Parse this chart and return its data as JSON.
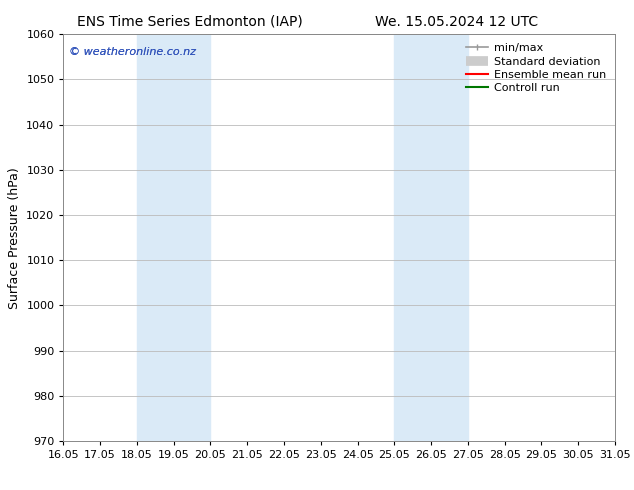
{
  "title_left": "ENS Time Series Edmonton (IAP)",
  "title_right": "We. 15.05.2024 12 UTC",
  "ylabel": "Surface Pressure (hPa)",
  "xlabel": "",
  "ylim": [
    970,
    1060
  ],
  "yticks": [
    970,
    980,
    990,
    1000,
    1010,
    1020,
    1030,
    1040,
    1050,
    1060
  ],
  "xtick_labels": [
    "16.05",
    "17.05",
    "18.05",
    "19.05",
    "20.05",
    "21.05",
    "22.05",
    "23.05",
    "24.05",
    "25.05",
    "26.05",
    "27.05",
    "28.05",
    "29.05",
    "30.05",
    "31.05"
  ],
  "xtick_positions": [
    0,
    1,
    2,
    3,
    4,
    5,
    6,
    7,
    8,
    9,
    10,
    11,
    12,
    13,
    14,
    15
  ],
  "shade_regions": [
    {
      "x_start": 2,
      "x_end": 4,
      "color": "#daeaf7"
    },
    {
      "x_start": 9,
      "x_end": 11,
      "color": "#daeaf7"
    }
  ],
  "watermark_text": "© weatheronline.co.nz",
  "watermark_color": "#3355bb",
  "background_color": "#ffffff",
  "plot_bg_color": "#ffffff",
  "grid_color": "#bbbbbb",
  "legend_items": [
    {
      "label": "min/max",
      "color": "#999999",
      "lw": 1.2
    },
    {
      "label": "Standard deviation",
      "color": "#cccccc",
      "lw": 7
    },
    {
      "label": "Ensemble mean run",
      "color": "#ff0000",
      "lw": 1.5
    },
    {
      "label": "Controll run",
      "color": "#007700",
      "lw": 1.5
    }
  ],
  "title_fontsize": 10,
  "axis_fontsize": 9,
  "tick_fontsize": 8,
  "legend_fontsize": 8
}
